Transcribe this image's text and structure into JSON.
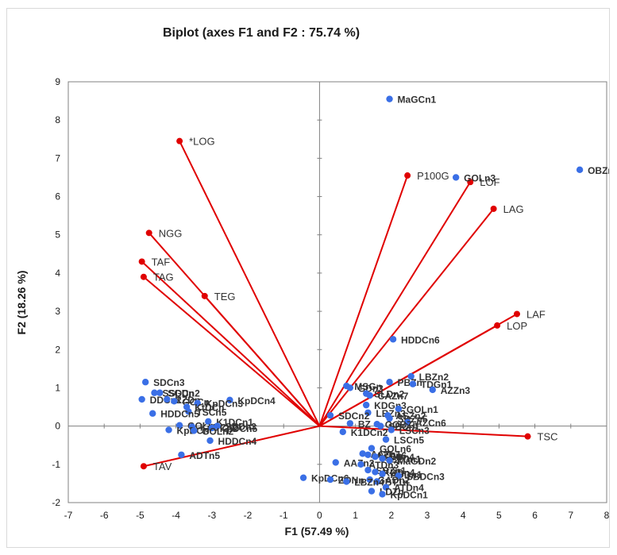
{
  "chart_data": {
    "type": "scatter",
    "title": "Biplot (axes F1 and F2 : 75.74 %)",
    "xlabel": "F1 (57.49 %)",
    "ylabel": "F2 (18.26 %)",
    "xlim": [
      -7,
      8
    ],
    "ylim": [
      -2,
      9
    ],
    "xticks": [
      "-7",
      "-6",
      "-5",
      "-4",
      "-3",
      "-2",
      "-1",
      "0",
      "1",
      "2",
      "3",
      "4",
      "5",
      "6",
      "7",
      "8"
    ],
    "yticks": [
      "-2",
      "-1",
      "0",
      "1",
      "2",
      "3",
      "4",
      "5",
      "6",
      "7",
      "8",
      "9"
    ],
    "grid": false,
    "colors": {
      "observations": "#3a6fe6",
      "variables": "#e00000",
      "frame": "#d9d9d9"
    },
    "variables": [
      {
        "label": "*LOG",
        "x": -3.9,
        "y": 7.45
      },
      {
        "label": "NGG",
        "x": -4.75,
        "y": 5.05
      },
      {
        "label": "TAF",
        "x": -4.95,
        "y": 4.3
      },
      {
        "label": "TAG",
        "x": -4.9,
        "y": 3.9
      },
      {
        "label": "TEG",
        "x": -3.2,
        "y": 3.4
      },
      {
        "label": "TAV",
        "x": -4.9,
        "y": -1.05
      },
      {
        "label": "P100G",
        "x": 2.45,
        "y": 6.55
      },
      {
        "label": "LOF",
        "x": 4.2,
        "y": 6.38
      },
      {
        "label": "LAG",
        "x": 4.85,
        "y": 5.68
      },
      {
        "label": "LAF",
        "x": 5.5,
        "y": 2.93
      },
      {
        "label": "LOP",
        "x": 4.95,
        "y": 2.63
      },
      {
        "label": "TSC",
        "x": 5.8,
        "y": -0.27
      }
    ],
    "observations": [
      {
        "label": "MaGCn1",
        "x": 1.95,
        "y": 8.55
      },
      {
        "label": "GOLn3",
        "x": 3.8,
        "y": 6.5
      },
      {
        "label": "OBZn",
        "x": 7.25,
        "y": 6.7
      },
      {
        "label": "HDDCn6",
        "x": 2.05,
        "y": 2.27
      },
      {
        "label": "LBZn2",
        "x": 2.55,
        "y": 1.3
      },
      {
        "label": "PBZn",
        "x": 1.95,
        "y": 1.15
      },
      {
        "label": "TDGn1",
        "x": 2.6,
        "y": 1.1
      },
      {
        "label": "AZZn3",
        "x": 3.15,
        "y": 0.95
      },
      {
        "label": "MSGn",
        "x": 0.75,
        "y": 1.05
      },
      {
        "label": "GDn3",
        "x": 0.85,
        "y": 1.0
      },
      {
        "label": "SLDn2",
        "x": 1.3,
        "y": 0.85
      },
      {
        "label": "CAZn7",
        "x": 1.4,
        "y": 0.8
      },
      {
        "label": "KDGn3",
        "x": 1.3,
        "y": 0.55
      },
      {
        "label": "GOLn1",
        "x": 2.2,
        "y": 0.45
      },
      {
        "label": "LBZn3",
        "x": 1.35,
        "y": 0.35
      },
      {
        "label": "ASZn2",
        "x": 1.9,
        "y": 0.28
      },
      {
        "label": "SBZn5",
        "x": 1.95,
        "y": 0.2
      },
      {
        "label": "AZCn6",
        "x": 2.45,
        "y": 0.1
      },
      {
        "label": "SDCn2",
        "x": 0.3,
        "y": 0.28
      },
      {
        "label": "BZ",
        "x": 0.85,
        "y": 0.07
      },
      {
        "label": "GOBZn",
        "x": 1.6,
        "y": 0.05
      },
      {
        "label": "SBCn1",
        "x": 1.7,
        "y": 0.0
      },
      {
        "label": "LSCn3",
        "x": 2.0,
        "y": -0.1
      },
      {
        "label": "K1DCn2",
        "x": 0.65,
        "y": -0.15
      },
      {
        "label": "LSCn5",
        "x": 1.85,
        "y": -0.35
      },
      {
        "label": "GOLn6",
        "x": 1.45,
        "y": -0.58
      },
      {
        "label": "AAZn1",
        "x": 1.2,
        "y": -0.72
      },
      {
        "label": "AZDn6",
        "x": 1.35,
        "y": -0.75
      },
      {
        "label": "SDDn4",
        "x": 1.55,
        "y": -0.8
      },
      {
        "label": "BZDn1",
        "x": 1.75,
        "y": -0.85
      },
      {
        "label": "MaGDn2",
        "x": 1.95,
        "y": -0.9
      },
      {
        "label": "AAZn2",
        "x": 0.45,
        "y": -0.95
      },
      {
        "label": "ATDn3",
        "x": 1.15,
        "y": -1.0
      },
      {
        "label": "SBZn1",
        "x": 1.35,
        "y": -1.15
      },
      {
        "label": "KDDn4",
        "x": 1.55,
        "y": -1.2
      },
      {
        "label": "ADDn1",
        "x": 1.75,
        "y": -1.25
      },
      {
        "label": "SBDCn3",
        "x": 2.2,
        "y": -1.3
      },
      {
        "label": "GADn2",
        "x": 1.4,
        "y": -1.4
      },
      {
        "label": "BT1n",
        "x": 1.6,
        "y": -1.45
      },
      {
        "label": "ATDn4",
        "x": 1.85,
        "y": -1.6
      },
      {
        "label": "LDZn",
        "x": 1.45,
        "y": -1.7
      },
      {
        "label": "KpDCn1",
        "x": 1.75,
        "y": -1.78
      },
      {
        "label": "KpDCn6",
        "x": -0.45,
        "y": -1.35
      },
      {
        "label": "ZONn",
        "x": 0.3,
        "y": -1.4
      },
      {
        "label": "LBZn4",
        "x": 0.75,
        "y": -1.45
      },
      {
        "label": "SDCn3",
        "x": -4.85,
        "y": 1.15
      },
      {
        "label": "SSDCn2",
        "x": -4.6,
        "y": 0.87
      },
      {
        "label": "DDCn2",
        "x": -4.95,
        "y": 0.7
      },
      {
        "label": "SGDn",
        "x": -4.45,
        "y": 0.87
      },
      {
        "label": "KZDn",
        "x": -4.25,
        "y": 0.7
      },
      {
        "label": "GOCn",
        "x": -4.05,
        "y": 0.65
      },
      {
        "label": "KpDCn4",
        "x": -2.5,
        "y": 0.68
      },
      {
        "label": "KpDCn3",
        "x": -3.4,
        "y": 0.6
      },
      {
        "label": "KtDCn",
        "x": -3.7,
        "y": 0.5
      },
      {
        "label": "TSCn5",
        "x": -3.65,
        "y": 0.38
      },
      {
        "label": "HDDCn5",
        "x": -4.65,
        "y": 0.33
      },
      {
        "label": "K1DCn1",
        "x": -3.1,
        "y": 0.12
      },
      {
        "label": "GOLn4",
        "x": -3.9,
        "y": 0.02
      },
      {
        "label": "KpDCn2",
        "x": -3.55,
        "y": -0.02
      },
      {
        "label": "KpDCn5",
        "x": -3.0,
        "y": -0.05
      },
      {
        "label": "SDDn3",
        "x": -2.85,
        "y": 0.0
      },
      {
        "label": "KpDCn",
        "x": -4.2,
        "y": -0.1
      },
      {
        "label": "GOLn2",
        "x": -3.5,
        "y": -0.12
      },
      {
        "label": "HDDCn4",
        "x": -3.05,
        "y": -0.38
      },
      {
        "label": "ADTn5",
        "x": -3.85,
        "y": -0.75
      }
    ]
  }
}
